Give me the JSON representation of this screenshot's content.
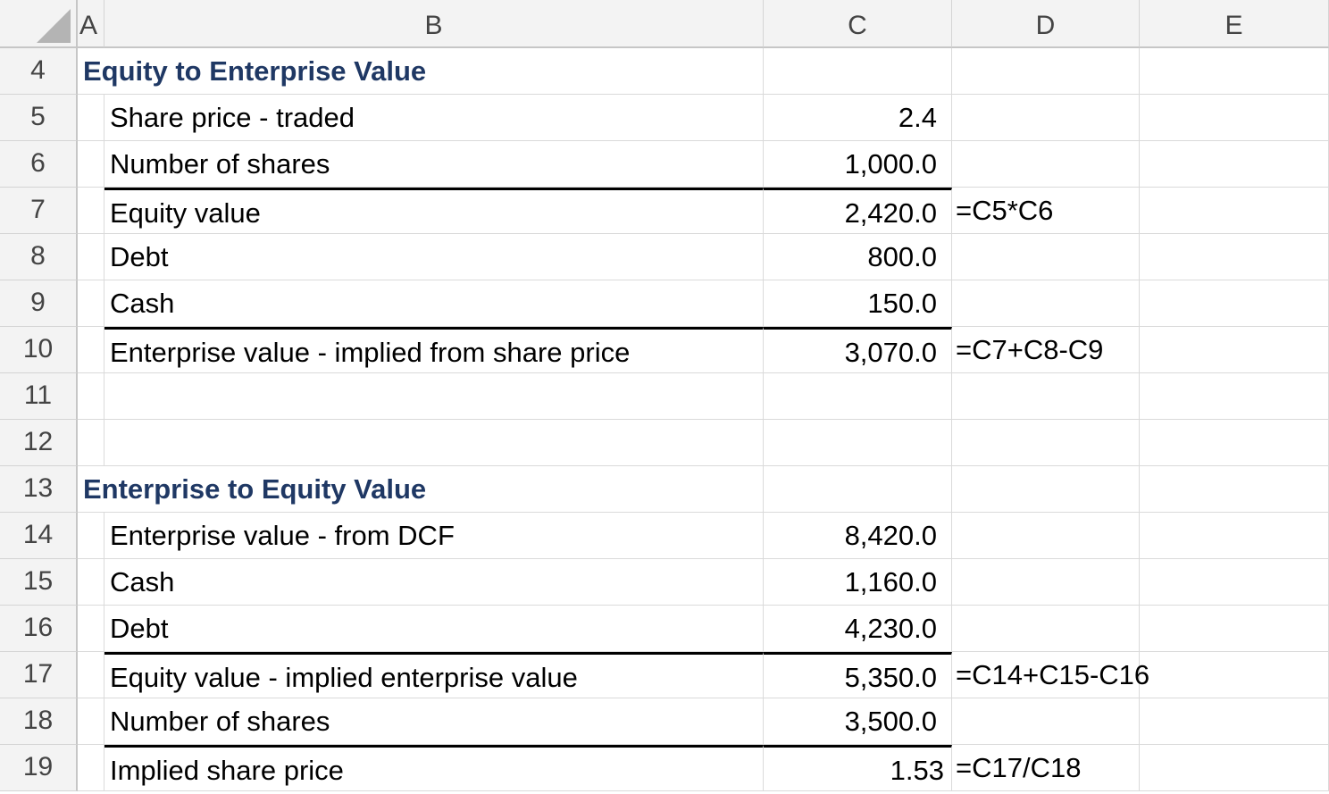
{
  "columns": [
    "A",
    "B",
    "C",
    "D",
    "E"
  ],
  "rows": [
    {
      "n": "4",
      "title": "Equity to Enterprise Value"
    },
    {
      "n": "5",
      "label": "Share price - traded",
      "value": "2.4",
      "formula": ""
    },
    {
      "n": "6",
      "label": "Number of shares",
      "value": "1,000.0",
      "formula": ""
    },
    {
      "n": "7",
      "label": "Equity value",
      "value": "2,420.0",
      "formula": "=C5*C6",
      "top_border": true
    },
    {
      "n": "8",
      "label": "Debt",
      "value": "800.0",
      "formula": ""
    },
    {
      "n": "9",
      "label": "Cash",
      "value": "150.0",
      "formula": ""
    },
    {
      "n": "10",
      "label": "Enterprise value - implied from share price",
      "value": "3,070.0",
      "formula": "=C7+C8-C9",
      "top_border": true
    },
    {
      "n": "11"
    },
    {
      "n": "12"
    },
    {
      "n": "13",
      "title": "Enterprise to Equity Value"
    },
    {
      "n": "14",
      "label": "Enterprise value - from DCF",
      "value": "8,420.0",
      "formula": ""
    },
    {
      "n": "15",
      "label": "Cash",
      "value": "1,160.0",
      "formula": ""
    },
    {
      "n": "16",
      "label": "Debt",
      "value": "4,230.0",
      "formula": ""
    },
    {
      "n": "17",
      "label": "Equity value - implied enterprise value",
      "value": "5,350.0",
      "formula": "=C14+C15-C16",
      "top_border": true
    },
    {
      "n": "18",
      "label": "Number of shares",
      "value": "3,500.0",
      "formula": ""
    },
    {
      "n": "19",
      "label": "Implied share price",
      "value": "1.53",
      "formula": "=C17/C18",
      "top_border": true
    }
  ],
  "colors": {
    "title": "#1f3864",
    "header_bg": "#f3f3f3",
    "gridline": "#dadada"
  }
}
